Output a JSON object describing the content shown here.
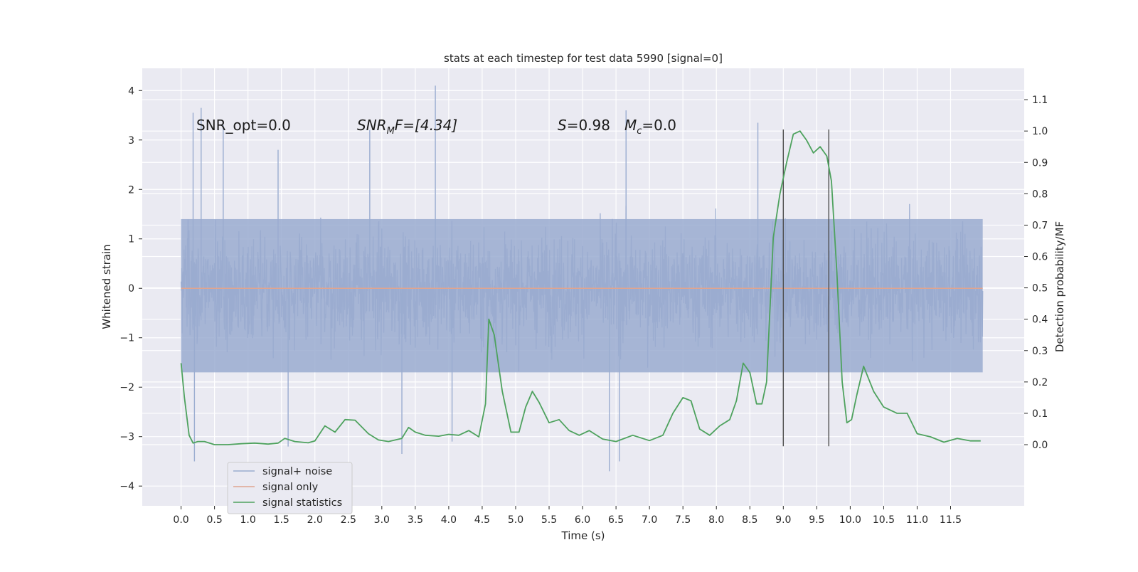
{
  "chart_data": {
    "type": "line",
    "title": "stats at each timestep for test data 5990 [signal=0]",
    "xlabel": "Time (s)",
    "ylabel_left": "Whitened strain",
    "ylabel_right": "Detection probability/MF",
    "xlim": [
      -0.58,
      12.6
    ],
    "ylim_left": [
      -4.4,
      4.45
    ],
    "ylim_right": [
      -0.195,
      1.2
    ],
    "x_ticks": [
      "0.0",
      "0.5",
      "1.0",
      "1.5",
      "2.0",
      "2.5",
      "3.0",
      "3.5",
      "4.0",
      "4.5",
      "5.0",
      "5.5",
      "6.0",
      "6.5",
      "7.0",
      "7.5",
      "8.0",
      "8.5",
      "9.0",
      "9.5",
      "10.0",
      "10.5",
      "11.0",
      "11.5"
    ],
    "y_ticks_left": [
      "4",
      "3",
      "2",
      "1",
      "0",
      "−1",
      "−2",
      "−3",
      "−4"
    ],
    "y_ticks_right": [
      "1.1",
      "1.0",
      "0.9",
      "0.8",
      "0.7",
      "0.6",
      "0.5",
      "0.4",
      "0.3",
      "0.2",
      "0.1",
      "0.0"
    ],
    "grid": true,
    "annotations": {
      "snr_opt": "SNR_opt=0.0",
      "snr_mf_base": "SNR",
      "snr_mf_sub": "M",
      "snr_mf_rest": "F=[4.34]",
      "s_base": "S",
      "s_rest": "=0.98",
      "mc_base": "M",
      "mc_sub": "c",
      "mc_rest": "=0.0"
    },
    "vertical_lines": [
      9.0,
      9.68
    ],
    "series": [
      {
        "name": "signal+ noise",
        "color": "#9aacd0",
        "description": "whitened noise, roughly between -2 and 2.2 with spikes",
        "envelope": {
          "typical_min": -1.7,
          "typical_max": 1.4,
          "peak_min": -3.7,
          "peak_max": 4.1
        },
        "spikes": [
          {
            "x": 0.18,
            "y": 3.55
          },
          {
            "x": 0.3,
            "y": 3.65
          },
          {
            "x": 0.63,
            "y": 3.3
          },
          {
            "x": 1.45,
            "y": 2.8
          },
          {
            "x": 2.82,
            "y": 3.2
          },
          {
            "x": 3.8,
            "y": 4.1
          },
          {
            "x": 6.65,
            "y": 3.6
          },
          {
            "x": 8.62,
            "y": 3.35
          },
          {
            "x": 0.2,
            "y": -3.5
          },
          {
            "x": 3.3,
            "y": -3.35
          },
          {
            "x": 6.4,
            "y": -3.7
          },
          {
            "x": 6.55,
            "y": -3.5
          },
          {
            "x": 1.6,
            "y": -3.2
          },
          {
            "x": 4.05,
            "y": -3.1
          }
        ]
      },
      {
        "name": "signal only",
        "color": "#e0a58f",
        "x": [
          0.0,
          11.98
        ],
        "y": [
          0.0,
          0.0
        ]
      },
      {
        "name": "signal statistics",
        "color": "#4ea25e",
        "x": [
          0.0,
          0.05,
          0.12,
          0.18,
          0.25,
          0.35,
          0.5,
          0.7,
          0.9,
          1.1,
          1.3,
          1.45,
          1.55,
          1.7,
          1.9,
          2.0,
          2.15,
          2.3,
          2.45,
          2.6,
          2.8,
          2.95,
          3.1,
          3.3,
          3.4,
          3.5,
          3.65,
          3.85,
          4.0,
          4.15,
          4.3,
          4.45,
          4.55,
          4.6,
          4.68,
          4.8,
          4.93,
          5.05,
          5.15,
          5.25,
          5.35,
          5.5,
          5.65,
          5.8,
          5.95,
          6.1,
          6.3,
          6.5,
          6.75,
          7.0,
          7.2,
          7.35,
          7.5,
          7.62,
          7.75,
          7.9,
          8.05,
          8.2,
          8.3,
          8.4,
          8.5,
          8.6,
          8.68,
          8.75,
          8.85,
          8.95,
          9.05,
          9.15,
          9.25,
          9.35,
          9.45,
          9.55,
          9.65,
          9.72,
          9.8,
          9.88,
          9.95,
          10.02,
          10.1,
          10.2,
          10.35,
          10.5,
          10.7,
          10.85,
          11.0,
          11.2,
          11.4,
          11.6,
          11.8,
          11.95
        ],
        "y": [
          0.26,
          0.15,
          0.03,
          0.005,
          0.01,
          0.01,
          0.0,
          0.0,
          0.003,
          0.005,
          0.002,
          0.005,
          0.02,
          0.01,
          0.006,
          0.012,
          0.06,
          0.04,
          0.08,
          0.078,
          0.035,
          0.015,
          0.01,
          0.02,
          0.055,
          0.04,
          0.03,
          0.027,
          0.033,
          0.03,
          0.045,
          0.025,
          0.13,
          0.4,
          0.35,
          0.17,
          0.04,
          0.04,
          0.12,
          0.17,
          0.135,
          0.07,
          0.08,
          0.045,
          0.03,
          0.045,
          0.018,
          0.01,
          0.03,
          0.013,
          0.03,
          0.1,
          0.15,
          0.14,
          0.05,
          0.03,
          0.06,
          0.08,
          0.14,
          0.26,
          0.23,
          0.13,
          0.13,
          0.2,
          0.66,
          0.8,
          0.9,
          0.99,
          1.0,
          0.97,
          0.93,
          0.95,
          0.92,
          0.84,
          0.55,
          0.2,
          0.07,
          0.08,
          0.16,
          0.25,
          0.17,
          0.12,
          0.1,
          0.1,
          0.035,
          0.025,
          0.008,
          0.02,
          0.012,
          0.012
        ]
      }
    ],
    "legend": {
      "placement": "lower-left",
      "entries": [
        "signal+ noise",
        "signal only",
        "signal statistics"
      ]
    }
  }
}
